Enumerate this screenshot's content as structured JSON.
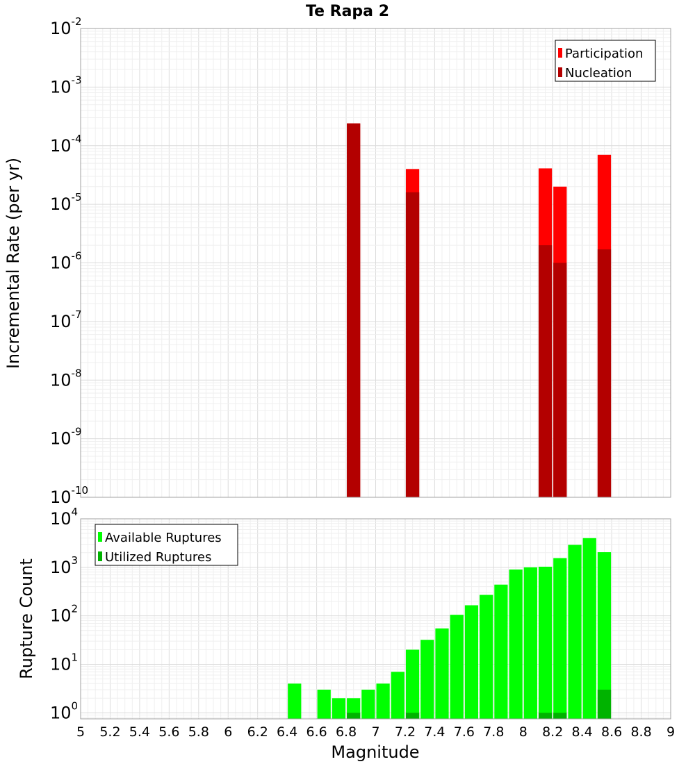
{
  "chart_data": [
    {
      "type": "bar",
      "title": "Te Rapa 2",
      "ylabel": "Incremental Rate (per yr)",
      "xlabel": "",
      "yscale": "log",
      "xlim": [
        5,
        9
      ],
      "ylim": [
        1e-10,
        0.01
      ],
      "y_tick_exponents": [
        -10,
        -9,
        -8,
        -7,
        -6,
        -5,
        -4,
        -3,
        -2
      ],
      "bar_width": 0.1,
      "legend_position": "top-right",
      "grid": true,
      "series": [
        {
          "name": "Participation",
          "color": "#ff0000",
          "x": [
            6.85,
            7.25,
            8.15,
            8.25,
            8.55
          ],
          "values": [
            0.00024,
            4e-05,
            4.1e-05,
            2e-05,
            7e-05
          ]
        },
        {
          "name": "Nucleation",
          "color": "#b30000",
          "x": [
            6.85,
            7.25,
            8.15,
            8.25,
            8.55
          ],
          "values": [
            0.00024,
            1.6e-05,
            2e-06,
            1e-06,
            1.7e-06
          ]
        }
      ]
    },
    {
      "type": "bar",
      "title": "",
      "ylabel": "Rupture Count",
      "xlabel": "Magnitude",
      "yscale": "log",
      "xlim": [
        5,
        9
      ],
      "ylim": [
        0.75,
        10000
      ],
      "y_tick_exponents": [
        0,
        1,
        2,
        3,
        4
      ],
      "x_ticks": [
        "5",
        "5.2",
        "5.4",
        "5.6",
        "5.8",
        "6",
        "6.2",
        "6.4",
        "6.6",
        "6.8",
        "7",
        "7.2",
        "7.4",
        "7.6",
        "7.8",
        "8",
        "8.2",
        "8.4",
        "8.6",
        "8.8",
        "9"
      ],
      "bar_width": 0.1,
      "legend_position": "top-left",
      "grid": true,
      "series": [
        {
          "name": "Available Ruptures",
          "color": "#00ff00",
          "x": [
            6.45,
            6.65,
            6.75,
            6.85,
            6.95,
            7.05,
            7.15,
            7.25,
            7.35,
            7.45,
            7.55,
            7.65,
            7.75,
            7.85,
            7.95,
            8.05,
            8.15,
            8.25,
            8.35,
            8.45,
            8.55
          ],
          "values": [
            4,
            3,
            2,
            2,
            3,
            4,
            7,
            20,
            32,
            55,
            105,
            165,
            270,
            440,
            900,
            1000,
            1030,
            1550,
            2900,
            4000,
            2050
          ]
        },
        {
          "name": "Utilized Ruptures",
          "color": "#00b300",
          "x": [
            6.85,
            7.25,
            8.15,
            8.25,
            8.55
          ],
          "values": [
            1,
            1,
            1,
            1,
            3
          ]
        }
      ]
    }
  ]
}
